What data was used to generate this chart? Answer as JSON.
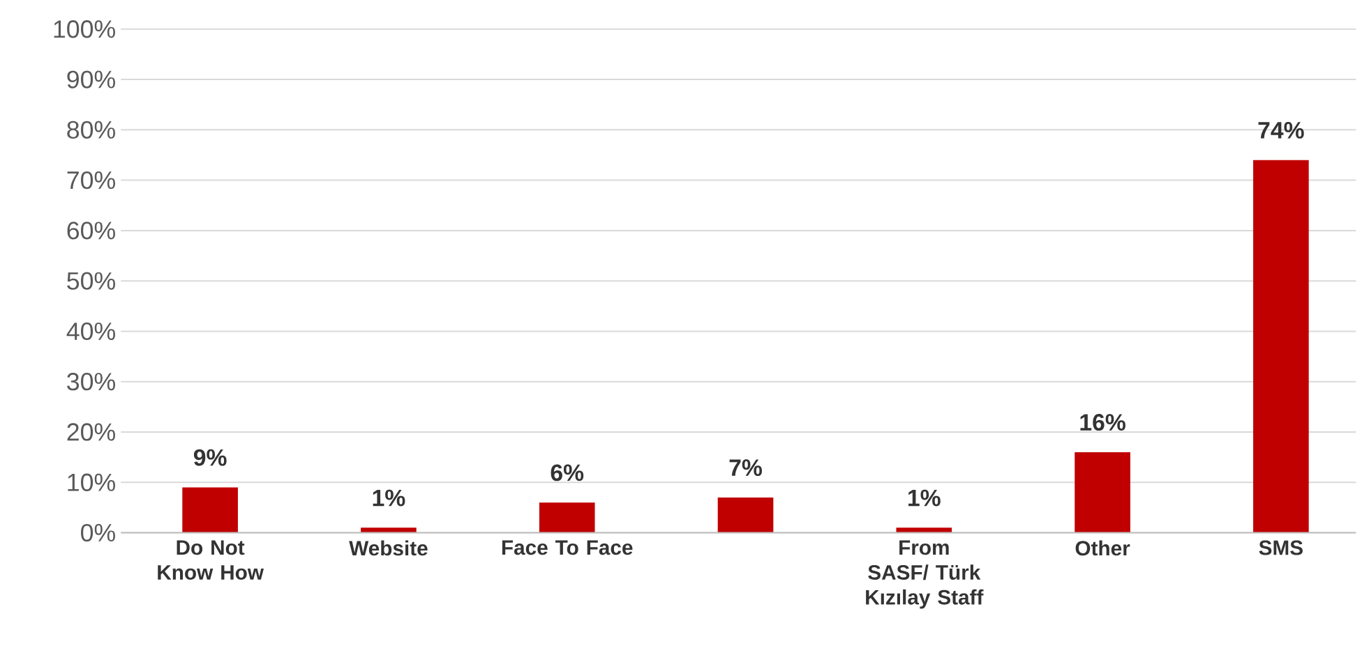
{
  "chart_data": {
    "type": "bar",
    "categories": [
      "Do Not Know How",
      "Website",
      "Face To Face",
      null,
      "From SASF/ Türk Kızılay Staff",
      "Other",
      "SMS"
    ],
    "values": [
      9,
      1,
      6,
      7,
      1,
      16,
      74
    ],
    "value_labels": [
      "9%",
      "1%",
      "6%",
      "7%",
      "1%",
      "16%",
      "74%"
    ],
    "color": "#c00000",
    "ylim": [
      0,
      100
    ],
    "yticks": [
      {
        "value": 0,
        "label": "0%"
      },
      {
        "value": 10,
        "label": "10%"
      },
      {
        "value": 20,
        "label": "20%"
      },
      {
        "value": 30,
        "label": "30%"
      },
      {
        "value": 40,
        "label": "40%"
      },
      {
        "value": 50,
        "label": "50%"
      },
      {
        "value": 60,
        "label": "60%"
      },
      {
        "value": 70,
        "label": "70%"
      },
      {
        "value": 80,
        "label": "80%"
      },
      {
        "value": 90,
        "label": "90%"
      },
      {
        "value": 100,
        "label": "100%"
      }
    ],
    "grid": "y"
  }
}
